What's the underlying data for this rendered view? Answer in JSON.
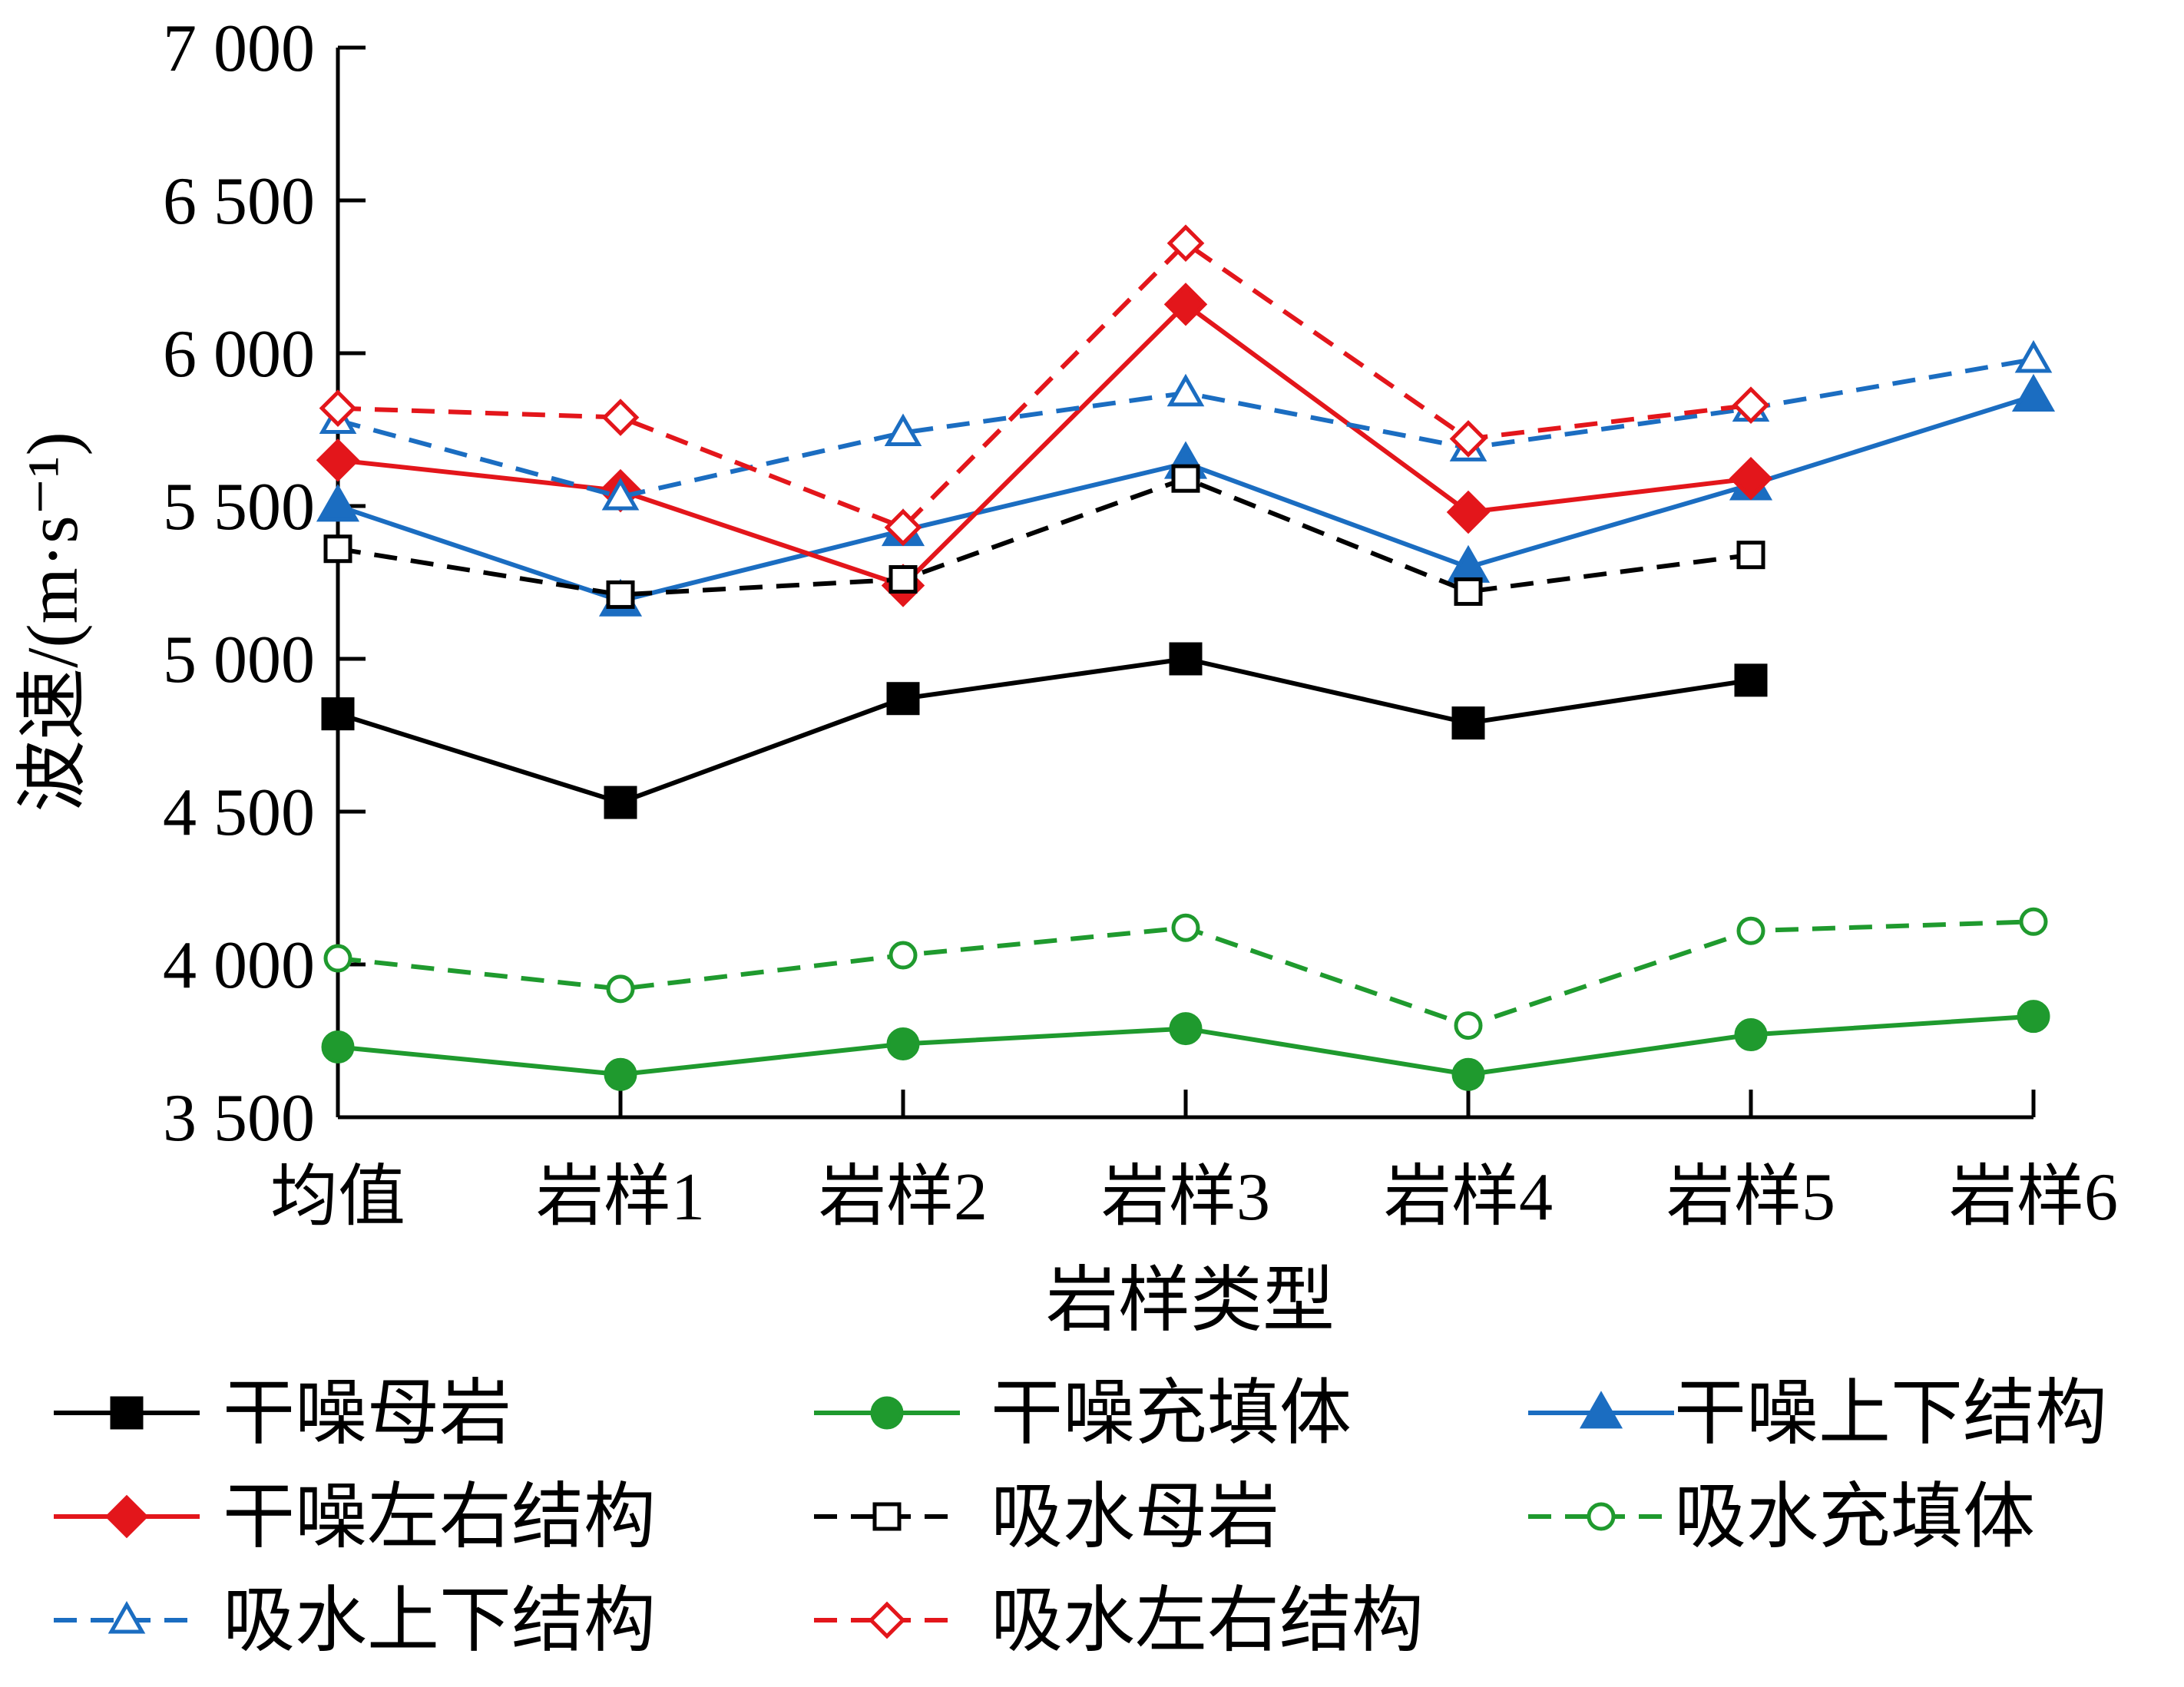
{
  "chart_data": {
    "type": "line",
    "xlabel": "岩样类型",
    "ylabel": "波速/(m·s⁻¹)",
    "categories": [
      "均值",
      "岩样1",
      "岩样2",
      "岩样3",
      "岩样4",
      "岩样5",
      "岩样6"
    ],
    "ylim": [
      3500,
      7000
    ],
    "yticks": [
      3500,
      4000,
      4500,
      5000,
      5500,
      6000,
      6500,
      7000
    ],
    "ytick_labels": [
      "3 500",
      "4 000",
      "4 500",
      "5 000",
      "5 500",
      "6 000",
      "6 500",
      "7 000"
    ],
    "grid": false,
    "legend_position": "bottom",
    "series": [
      {
        "name": "干噪母岩",
        "color": "#000000",
        "dash": "solid",
        "marker": "square",
        "filled": true,
        "values": [
          4820,
          4530,
          4870,
          5000,
          4790,
          4930,
          null
        ]
      },
      {
        "name": "干噪充填体",
        "color": "#1f9a2e",
        "dash": "solid",
        "marker": "circle",
        "filled": true,
        "values": [
          3730,
          3640,
          3740,
          3790,
          3640,
          3770,
          3830
        ]
      },
      {
        "name": "干噪上下结构",
        "color": "#1b6dc1",
        "dash": "solid",
        "marker": "triangle",
        "filled": true,
        "values": [
          5500,
          5190,
          5420,
          5640,
          5300,
          5570,
          5860
        ]
      },
      {
        "name": "干噪左右结构",
        "color": "#e3161b",
        "dash": "solid",
        "marker": "diamond",
        "filled": true,
        "values": [
          5650,
          5550,
          5240,
          6160,
          5480,
          5590,
          null
        ]
      },
      {
        "name": "吸水母岩",
        "color": "#000000",
        "dash": "dashed",
        "marker": "square",
        "filled": false,
        "values": [
          5360,
          5210,
          5260,
          5590,
          5220,
          5340,
          null
        ]
      },
      {
        "name": "吸水充填体",
        "color": "#1f9a2e",
        "dash": "dashed",
        "marker": "circle",
        "filled": false,
        "values": [
          4020,
          3920,
          4030,
          4120,
          3800,
          4110,
          4140
        ]
      },
      {
        "name": "吸水上下结构",
        "color": "#1b6dc1",
        "dash": "dashed",
        "marker": "triangle",
        "filled": false,
        "values": [
          5780,
          5530,
          5740,
          5870,
          5690,
          5820,
          5980
        ]
      },
      {
        "name": "吸水左右结构",
        "color": "#e3161b",
        "dash": "dashed",
        "marker": "diamond",
        "filled": false,
        "values": [
          5820,
          5790,
          5430,
          6360,
          5720,
          5830,
          null
        ]
      }
    ]
  }
}
